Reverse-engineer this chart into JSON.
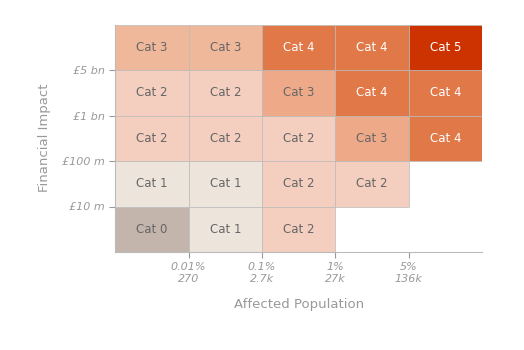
{
  "title_x": "Affected Population",
  "title_y": "Financial Impact",
  "col_labels_line1": [
    "0.01%",
    "0.1%",
    "1%",
    "5%"
  ],
  "col_labels_line2": [
    "270",
    "2.7k",
    "27k",
    "136k"
  ],
  "row_labels": [
    "£10 m",
    "£100 m",
    "£1 bn",
    "£5 bn"
  ],
  "grid": [
    [
      "Cat 0",
      "Cat 1",
      "Cat 2",
      null,
      null
    ],
    [
      "Cat 1",
      "Cat 1",
      "Cat 2",
      "Cat 2",
      null
    ],
    [
      "Cat 2",
      "Cat 2",
      "Cat 2",
      "Cat 3",
      "Cat 4"
    ],
    [
      "Cat 2",
      "Cat 2",
      "Cat 3",
      "Cat 4",
      "Cat 4"
    ],
    [
      "Cat 3",
      "Cat 3",
      "Cat 4",
      "Cat 4",
      "Cat 5"
    ]
  ],
  "cell_colors": [
    [
      "#c4b5ac",
      "#ede5dc",
      "#f4cebe",
      null,
      null
    ],
    [
      "#ede5dc",
      "#ede5dc",
      "#f4cebe",
      "#f4cebe",
      null
    ],
    [
      "#f4cebe",
      "#f4cebe",
      "#f4cebe",
      "#eeaa88",
      "#e07848"
    ],
    [
      "#f4cebe",
      "#f4cebe",
      "#eeaa88",
      "#e07848",
      "#e07848"
    ],
    [
      "#f0b89a",
      "#f0b89a",
      "#e07848",
      "#e07848",
      "#cc3300"
    ]
  ],
  "text_colors": [
    [
      "#666666",
      "#666666",
      "#666666",
      null,
      null
    ],
    [
      "#666666",
      "#666666",
      "#666666",
      "#666666",
      null
    ],
    [
      "#666666",
      "#666666",
      "#666666",
      "#666666",
      "#ffffff"
    ],
    [
      "#666666",
      "#666666",
      "#666666",
      "#ffffff",
      "#ffffff"
    ],
    [
      "#666666",
      "#666666",
      "#ffffff",
      "#ffffff",
      "#ffffff"
    ]
  ],
  "background_color": "#ffffff",
  "grid_line_color": "#bbbbbb",
  "axis_label_color": "#999999",
  "tick_label_color": "#999999",
  "font_size_cell": 8.5,
  "font_size_axis_label": 9.5,
  "font_size_tick": 8
}
